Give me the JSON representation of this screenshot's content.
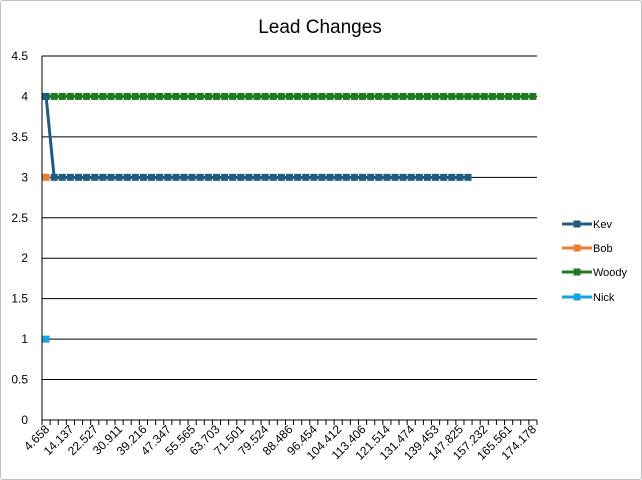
{
  "chart_data": {
    "type": "line",
    "title": "Lead Changes",
    "xlabel": "",
    "ylabel": "",
    "ylim": [
      0,
      4.5
    ],
    "y_ticks": [
      "0",
      "0.5",
      "1",
      "1.5",
      "2",
      "2.5",
      "3",
      "3.5",
      "4",
      "4.5"
    ],
    "x_tick_labels": [
      "4.658",
      "14.137",
      "22.527",
      "30.911",
      "39.216",
      "47.347",
      "55.565",
      "63.703",
      "71.501",
      "79.524",
      "88.486",
      "96.454",
      "104.412",
      "113.406",
      "121.514",
      "131.474",
      "139.453",
      "147.825",
      "157.232",
      "165.561",
      "174.178"
    ],
    "category_count": 61,
    "grid": true,
    "legend_position": "right",
    "series": [
      {
        "name": "Kev",
        "color": "#1f5c7d",
        "values": [
          4,
          3,
          3,
          3,
          3,
          3,
          3,
          3,
          3,
          3,
          3,
          3,
          3,
          3,
          3,
          3,
          3,
          3,
          3,
          3,
          3,
          3,
          3,
          3,
          3,
          3,
          3,
          3,
          3,
          3,
          3,
          3,
          3,
          3,
          3,
          3,
          3,
          3,
          3,
          3,
          3,
          3,
          3,
          3,
          3,
          3,
          3,
          3,
          3,
          3,
          3,
          3,
          3
        ]
      },
      {
        "name": "Bob",
        "color": "#ed7d31",
        "values": [
          3
        ]
      },
      {
        "name": "Woody",
        "color": "#1e7a1e",
        "values": [
          4,
          4,
          4,
          4,
          4,
          4,
          4,
          4,
          4,
          4,
          4,
          4,
          4,
          4,
          4,
          4,
          4,
          4,
          4,
          4,
          4,
          4,
          4,
          4,
          4,
          4,
          4,
          4,
          4,
          4,
          4,
          4,
          4,
          4,
          4,
          4,
          4,
          4,
          4,
          4,
          4,
          4,
          4,
          4,
          4,
          4,
          4,
          4,
          4,
          4,
          4,
          4,
          4,
          4,
          4,
          4,
          4,
          4,
          4,
          4,
          4
        ]
      },
      {
        "name": "Nick",
        "color": "#1aa3e0",
        "values": [
          1
        ]
      }
    ]
  }
}
